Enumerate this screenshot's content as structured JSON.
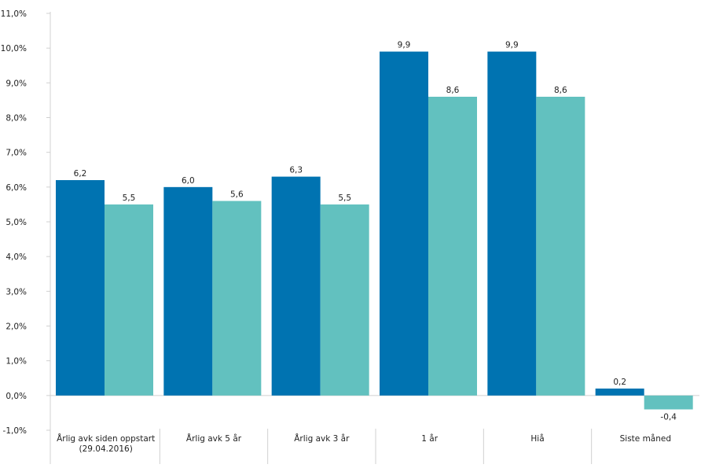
{
  "chart_data": {
    "type": "bar",
    "categories": [
      [
        "Årlig avk siden oppstart",
        "(29.04.2016)"
      ],
      [
        "Årlig avk 5 år"
      ],
      [
        "Årlig avk 3 år"
      ],
      [
        "1 år"
      ],
      [
        "Hiå"
      ],
      [
        "Siste måned"
      ]
    ],
    "series": [
      {
        "values": [
          6.2,
          6.0,
          6.3,
          9.9,
          9.9,
          0.2
        ],
        "labels": [
          "6,2",
          "6,0",
          "6,3",
          "9,9",
          "9,9",
          "0,2"
        ],
        "color": "#0073b1"
      },
      {
        "values": [
          5.5,
          5.6,
          5.5,
          8.6,
          8.6,
          -0.4
        ],
        "labels": [
          "5,5",
          "5,6",
          "5,5",
          "8,6",
          "8,6",
          "-0,4"
        ],
        "color": "#62c1bf"
      }
    ],
    "yticks": [
      "-1,0%",
      "0,0%",
      "1,0%",
      "2,0%",
      "3,0%",
      "4,0%",
      "5,0%",
      "6,0%",
      "7,0%",
      "8,0%",
      "9,0%",
      "10,0%",
      "11,0%"
    ],
    "ylim": [
      -1,
      11
    ],
    "ytick_step": 1,
    "grid": false,
    "legend": "none",
    "axis_color": "#d0d0d0"
  }
}
